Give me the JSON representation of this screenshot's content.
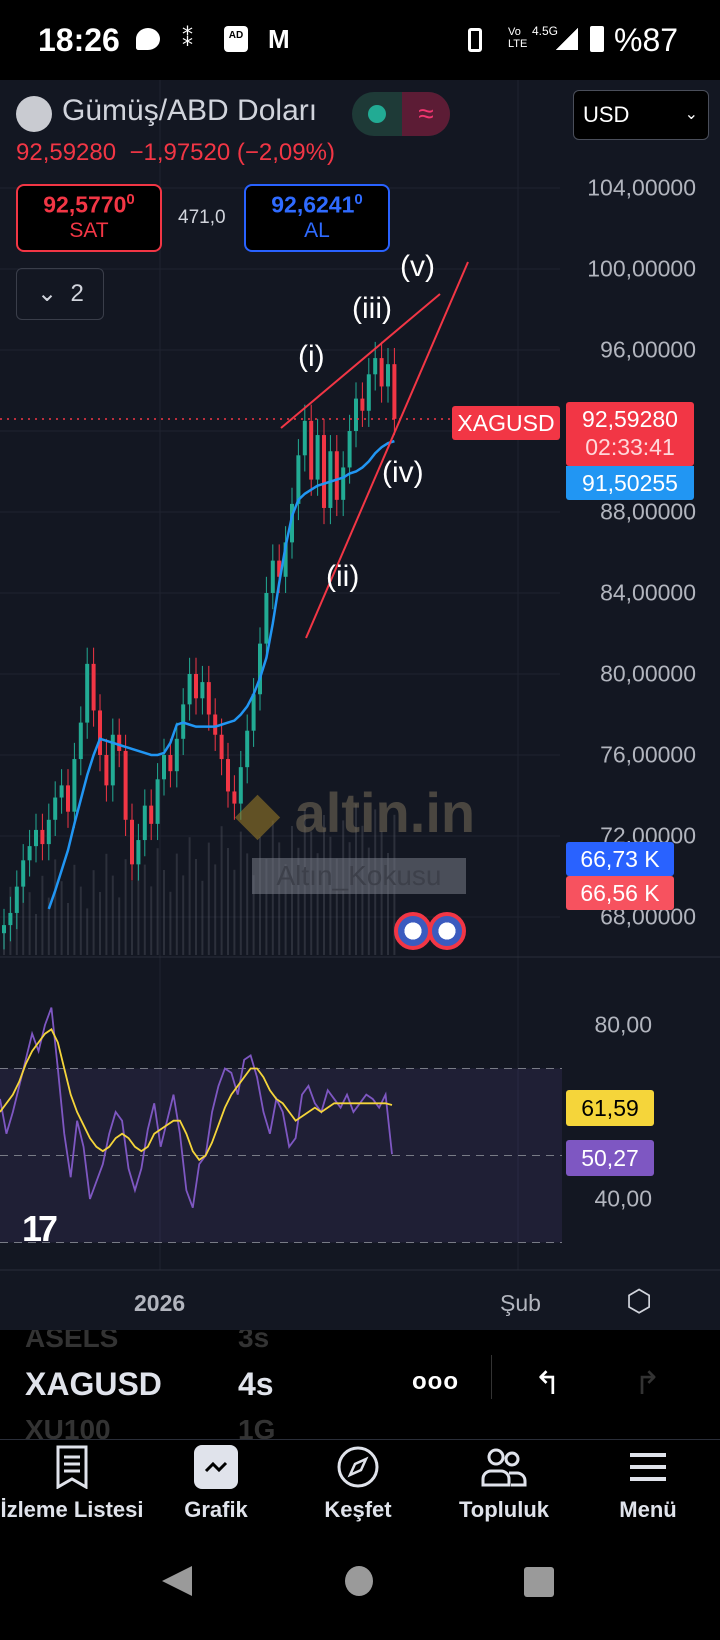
{
  "status_bar": {
    "time": "18:26",
    "battery": "%87",
    "network": "4.5G",
    "volte": "Vo LTE",
    "icons": [
      "chat-icon",
      "spark-icon",
      "adblocker-icon",
      "gmail-icon",
      "vibrate-icon",
      "signal-icon",
      "battery-icon"
    ]
  },
  "header": {
    "title": "Gümüş/ABD Doları",
    "price": "92,59280",
    "change": "−1,97520",
    "change_pct": "(−2,09%)",
    "currency": "USD",
    "sell": {
      "price": "92,5770",
      "sup": "0",
      "label": "SAT"
    },
    "spread": "471,0",
    "buy": {
      "price": "92,6241",
      "sup": "0",
      "label": "AL"
    },
    "indicators_count": "2"
  },
  "colors": {
    "up": "#22ab94",
    "down": "#f23645",
    "ma": "#2196f3",
    "rsi": "#7e57c2",
    "rsi_ma": "#f5d53a",
    "bg": "#131722"
  },
  "annotations": {
    "wave_labels": [
      "(i)",
      "(ii)",
      "(iii)",
      "(iv)",
      "(v)"
    ],
    "watermark": "altin.in",
    "watermark_label": "Altın_Kokusu"
  },
  "price_axis": {
    "ticks": [
      "104,00000",
      "100,00000",
      "96,00000",
      "88,00000",
      "84,00000",
      "80,00000",
      "76,00000",
      "72,00000",
      "68,00000"
    ],
    "symbol_tag": "XAGUSD",
    "last_price": "92,59280",
    "countdown": "02:33:41",
    "ma_value": "91,50255",
    "vol_tag_1": "66,73 K",
    "vol_tag_2": "66,56 K"
  },
  "rsi_axis": {
    "ticks": [
      "80,00",
      "40,00"
    ],
    "rsi_ma_value": "61,59",
    "rsi_value": "50,27"
  },
  "time_axis": {
    "labels": [
      "2026",
      "Şub"
    ]
  },
  "chart_data": {
    "type": "candlestick",
    "ylim": [
      66,
      106
    ],
    "yticks": [
      104,
      100,
      96,
      92,
      88,
      84,
      80,
      76,
      72,
      68
    ],
    "close": [
      67.6,
      68.2,
      69.5,
      70.8,
      71.5,
      72.3,
      71.6,
      72.8,
      73.9,
      74.5,
      73.2,
      75.8,
      77.6,
      80.5,
      78.2,
      76.0,
      74.5,
      77.0,
      76.2,
      72.8,
      70.6,
      71.8,
      73.5,
      72.6,
      74.8,
      76.0,
      75.2,
      76.8,
      78.5,
      80.0,
      78.8,
      79.6,
      78.0,
      77.0,
      75.8,
      74.2,
      73.6,
      75.4,
      77.2,
      79.0,
      81.5,
      84.0,
      85.6,
      84.8,
      86.5,
      88.4,
      90.8,
      92.5,
      89.6,
      91.8,
      88.2,
      91.0,
      88.6,
      90.2,
      92.0,
      93.6,
      93.0,
      94.8,
      95.6,
      94.2,
      95.3,
      92.6
    ],
    "ma": [
      null,
      null,
      null,
      null,
      null,
      null,
      null,
      68.4,
      69.3,
      70.3,
      71.3,
      72.6,
      73.8,
      75.0,
      76.0,
      76.8,
      76.7,
      76.6,
      76.5,
      76.4,
      76.3,
      76.2,
      76.1,
      76.0,
      76.0,
      76.1,
      76.6,
      77.5,
      77.6,
      77.5,
      77.4,
      77.4,
      77.4,
      77.4,
      77.5,
      77.6,
      77.7,
      78.0,
      78.4,
      79.0,
      79.8,
      80.8,
      82.5,
      84.5,
      86.3,
      87.8,
      88.6,
      88.9,
      89.1,
      89.3,
      89.4,
      89.5,
      89.6,
      89.7,
      89.9,
      90.0,
      90.2,
      90.5,
      90.9,
      91.2,
      91.4,
      91.5
    ],
    "rsi": {
      "ylim": [
        25,
        95
      ],
      "bands": [
        70,
        50,
        30
      ],
      "rsi": [
        63,
        55,
        60,
        66,
        72,
        78,
        74,
        80,
        84,
        70,
        55,
        45,
        58,
        52,
        40,
        44,
        48,
        55,
        60,
        58,
        47,
        42,
        47,
        56,
        62,
        52,
        58,
        64,
        55,
        42,
        38,
        48,
        50,
        60,
        66,
        70,
        69,
        64,
        72,
        73,
        68,
        60,
        55,
        63,
        60,
        52,
        54,
        64,
        66,
        62,
        60,
        65,
        63,
        61,
        64,
        60,
        62,
        64,
        63,
        61,
        64,
        50.3
      ],
      "rsi_ma": [
        60,
        62,
        64,
        67,
        71,
        74,
        76,
        78,
        79,
        76,
        70,
        64,
        60,
        57,
        54,
        52,
        51,
        52,
        54,
        55,
        54,
        52,
        51,
        52,
        55,
        56,
        57,
        58,
        58,
        55,
        51,
        49,
        50,
        53,
        57,
        61,
        64,
        66,
        68,
        70,
        70,
        68,
        65,
        63,
        62,
        60,
        58,
        59,
        60,
        61,
        60,
        61,
        62,
        62,
        62,
        62,
        62,
        62,
        62,
        62,
        62,
        61.6
      ]
    }
  },
  "symbol_strip": {
    "prev": {
      "symbol": "ASELS",
      "interval": "3s"
    },
    "current": {
      "symbol": "XAGUSD",
      "interval": "4s"
    },
    "next": {
      "symbol": "XU100",
      "interval": "1G"
    }
  },
  "bottom_nav": {
    "items": [
      {
        "label": "İzleme Listesi"
      },
      {
        "label": "Grafik"
      },
      {
        "label": "Keşfet"
      },
      {
        "label": "Topluluk"
      },
      {
        "label": "Menü"
      }
    ]
  }
}
